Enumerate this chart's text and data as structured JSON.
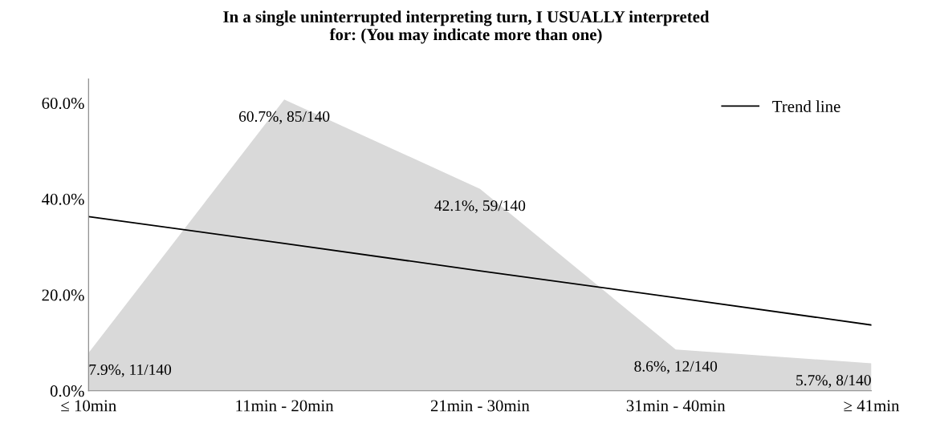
{
  "chart_data": {
    "type": "area",
    "title": "In a single uninterrupted interpreting turn, I USUALLY interpreted\nfor: (You may indicate more than one)",
    "categories": [
      "≤ 10min",
      "11min - 20min",
      "21min - 30min",
      "31min - 40min",
      "≥ 41min"
    ],
    "series": [
      {
        "color": "#d9d9d9",
        "values": [
          7.9,
          60.7,
          42.1,
          8.6,
          5.7
        ],
        "value_labels": [
          "7.9%, 11/140",
          "60.7%, 85/140",
          "42.1%, 59/140",
          "8.6%, 12/140",
          "5.7%, 8/140"
        ]
      },
      {
        "type": "line",
        "name": "Trend line",
        "color": "#000000",
        "values": [
          36.3,
          30.7,
          25.0,
          19.4,
          13.7
        ]
      }
    ],
    "ylim": [
      0,
      65
    ],
    "yticks": [
      {
        "value": 0,
        "label": "0.0%"
      },
      {
        "value": 20,
        "label": "20.0%"
      },
      {
        "value": 40,
        "label": "40.0%"
      },
      {
        "value": 60,
        "label": "60.0%"
      }
    ],
    "grid": false,
    "legend": "top right"
  }
}
